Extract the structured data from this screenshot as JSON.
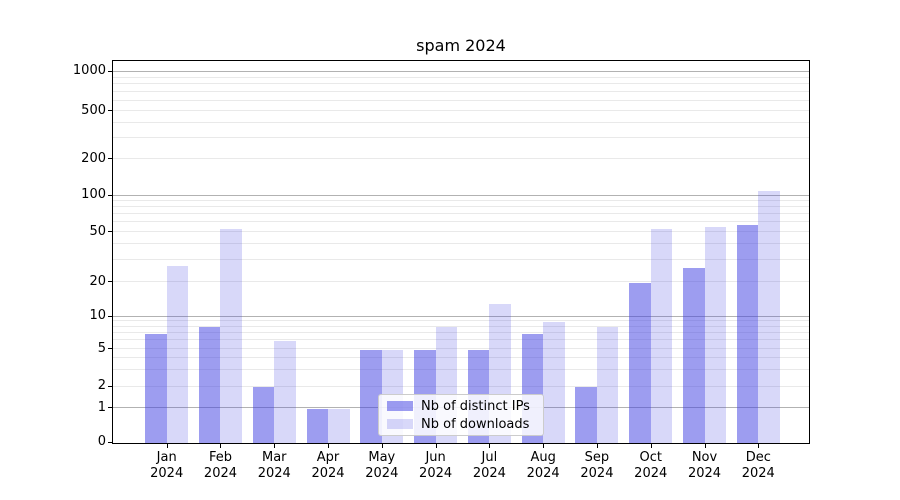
{
  "title": "spam 2024",
  "legend": {
    "items": [
      {
        "label": "Nb of distinct IPs"
      },
      {
        "label": "Nb of downloads"
      }
    ]
  },
  "chart_data": {
    "type": "bar",
    "title": "spam 2024",
    "categories": [
      "Jan 2024",
      "Feb 2024",
      "Mar 2024",
      "Apr 2024",
      "May 2024",
      "Jun 2024",
      "Jul 2024",
      "Aug 2024",
      "Sep 2024",
      "Oct 2024",
      "Nov 2024",
      "Dec 2024"
    ],
    "month_labels": [
      "Jan",
      "Feb",
      "Mar",
      "Apr",
      "May",
      "Jun",
      "Jul",
      "Aug",
      "Sep",
      "Oct",
      "Nov",
      "Dec"
    ],
    "year_label": "2024",
    "series": [
      {
        "name": "Nb of distinct IPs",
        "color": "rgba(60,60,225,0.5)",
        "values": [
          7,
          8,
          2,
          1,
          5,
          5,
          5,
          7,
          2,
          20,
          26,
          58
        ]
      },
      {
        "name": "Nb of downloads",
        "color": "rgba(60,60,225,0.2)",
        "values": [
          27,
          53,
          6,
          1,
          5,
          8,
          13,
          9,
          8,
          53,
          56,
          110
        ]
      }
    ],
    "yscale": "symlog",
    "yticks": [
      0,
      1,
      2,
      5,
      10,
      20,
      50,
      100,
      200,
      500,
      1000
    ],
    "ylim": [
      0,
      1300
    ],
    "grid": "both",
    "legend_position": "inside lower-center",
    "colors": {
      "bar_distinct_ips": "#9c9cf0",
      "bar_downloads": "#dedef9",
      "major_grid": "#b2b2b2",
      "minor_grid": "#e9e9e9",
      "axis": "#000000",
      "text": "#000000",
      "background": "#ffffff"
    }
  }
}
